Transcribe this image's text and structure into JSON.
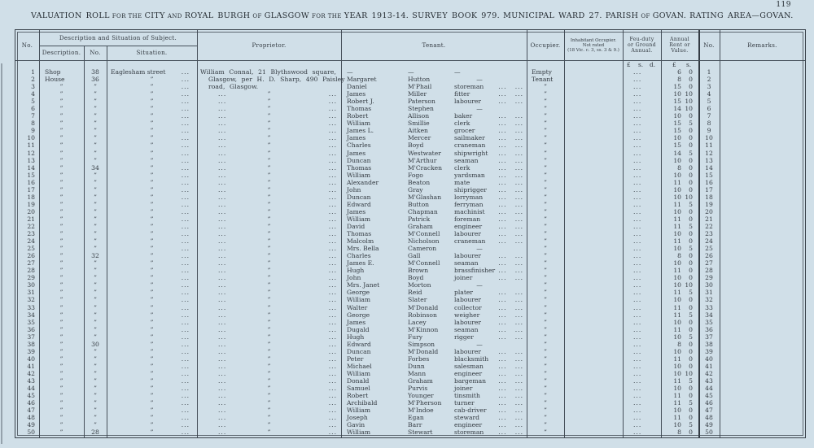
{
  "title": {
    "segments": [
      {
        "text": "VALUATION ROLL",
        "small": false
      },
      {
        "text": "FOR THE",
        "small": true
      },
      {
        "text": "CITY",
        "small": false
      },
      {
        "text": "AND",
        "small": true
      },
      {
        "text": "ROYAL BURGH",
        "small": false
      },
      {
        "text": "OF",
        "small": true
      },
      {
        "text": "GLASGOW",
        "small": false
      },
      {
        "text": "FOR THE",
        "small": true
      },
      {
        "text": "YEAR 1913-14.",
        "small": false
      },
      {
        "text": "SURVEY BOOK 979.",
        "small": false,
        "gap": true
      },
      {
        "text": "MUNICIPAL WARD 27.",
        "small": false,
        "gap": true
      },
      {
        "text": "PARISH",
        "small": false,
        "gap": true
      },
      {
        "text": "OF",
        "small": true
      },
      {
        "text": "GOVAN.",
        "small": false
      },
      {
        "text": "RATING AREA—GOVAN.",
        "small": false,
        "gap": true
      }
    ],
    "page_number": "119"
  },
  "table": {
    "headers": {
      "no_left": "No.",
      "group": "Description and Situation of Subject.",
      "description": "Description.",
      "no_mid": "No.",
      "situation": "Situation.",
      "proprietor": "Proprietor.",
      "tenant": "Tenant.",
      "occupier": "Occupier.",
      "inhabitant_lines": [
        "Inhabitant Occupier.",
        "Not rated",
        "(18 Vic. c. 3, ss. 3 & 9.)"
      ],
      "feu_lines": [
        "Feu-duty",
        "or Ground",
        "Annual."
      ],
      "rent_lines": [
        "Annual",
        "Rent or",
        "Value."
      ],
      "no_right": "No.",
      "remarks": "Remarks."
    },
    "units": {
      "pound": "£",
      "s": "s.",
      "d": "d."
    },
    "ditto": "”",
    "dash": "—",
    "dots": "...",
    "proprietor_lines": [
      "William Connal, 21 Blythswood square,",
      "Glasgow, per H. D. Sharp, 490 Paisley",
      "road, Glasgow."
    ],
    "columns_legend": [
      "no",
      "description",
      "house_no",
      "situation",
      "tenant_forename",
      "tenant_surname",
      "tenant_occupation",
      "occupier",
      "rent_pounds",
      "rent_shillings"
    ],
    "rows": [
      [
        1,
        "Shop",
        "38",
        "Eaglesham street",
        "—",
        "—",
        "—",
        "Empty",
        "6",
        "0"
      ],
      [
        2,
        "House",
        "36",
        "”",
        "Margaret",
        "Hutton",
        "—",
        "Tenant",
        "8",
        "0"
      ],
      [
        3,
        "”",
        "”",
        "”",
        "Daniel",
        "M'Phail",
        "storeman",
        "”",
        "15",
        "0"
      ],
      [
        4,
        "”",
        "”",
        "”",
        "James",
        "Miller",
        "fitter",
        "”",
        "10",
        "10"
      ],
      [
        5,
        "”",
        "”",
        "”",
        "Robert J.",
        "Paterson",
        "labourer",
        "”",
        "15",
        "10"
      ],
      [
        6,
        "”",
        "”",
        "”",
        "Thomas",
        "Stephen",
        "—",
        "”",
        "14",
        "10"
      ],
      [
        7,
        "”",
        "”",
        "”",
        "Robert",
        "Allison",
        "baker",
        "”",
        "10",
        "0"
      ],
      [
        8,
        "”",
        "”",
        "”",
        "William",
        "Smillie",
        "clerk",
        "”",
        "15",
        "5"
      ],
      [
        9,
        "”",
        "”",
        "”",
        "James L.",
        "Aitken",
        "grocer",
        "”",
        "15",
        "0"
      ],
      [
        10,
        "”",
        "”",
        "”",
        "James",
        "Mercer",
        "sailmaker",
        "”",
        "10",
        "0"
      ],
      [
        11,
        "”",
        "”",
        "”",
        "Charles",
        "Boyd",
        "craneman",
        "”",
        "15",
        "0"
      ],
      [
        12,
        "”",
        "”",
        "”",
        "James",
        "Westwater",
        "shipwright",
        "”",
        "14",
        "5"
      ],
      [
        13,
        "”",
        "”",
        "”",
        "Duncan",
        "M'Arthur",
        "seaman",
        "”",
        "10",
        "0"
      ],
      [
        14,
        "”",
        "34",
        "”",
        "Thomas",
        "M'Cracken",
        "clerk",
        "”",
        "8",
        "0"
      ],
      [
        15,
        "”",
        "”",
        "”",
        "William",
        "Fogo",
        "yardsman",
        "”",
        "10",
        "0"
      ],
      [
        16,
        "”",
        "”",
        "”",
        "Alexander",
        "Beaton",
        "mate",
        "”",
        "11",
        "0"
      ],
      [
        17,
        "”",
        "”",
        "”",
        "John",
        "Gray",
        "shiprigger",
        "”",
        "10",
        "0"
      ],
      [
        18,
        "”",
        "”",
        "”",
        "Duncan",
        "M'Glashan",
        "lorryman",
        "”",
        "10",
        "10"
      ],
      [
        19,
        "”",
        "”",
        "”",
        "Edward",
        "Button",
        "ferryman",
        "”",
        "11",
        "5"
      ],
      [
        20,
        "”",
        "”",
        "”",
        "James",
        "Chapman",
        "machinist",
        "”",
        "10",
        "0"
      ],
      [
        21,
        "”",
        "”",
        "”",
        "William",
        "Patrick",
        "foreman",
        "”",
        "11",
        "0"
      ],
      [
        22,
        "”",
        "”",
        "”",
        "David",
        "Graham",
        "engineer",
        "”",
        "11",
        "5"
      ],
      [
        23,
        "”",
        "”",
        "”",
        "Thomas",
        "M'Connell",
        "labourer",
        "”",
        "10",
        "0"
      ],
      [
        24,
        "”",
        "”",
        "”",
        "Malcolm",
        "Nicholson",
        "craneman",
        "”",
        "11",
        "0"
      ],
      [
        25,
        "”",
        "”",
        "”",
        "Mrs. Bella",
        "Cameron",
        "—",
        "”",
        "10",
        "5"
      ],
      [
        26,
        "”",
        "32",
        "”",
        "Charles",
        "Gall",
        "labourer",
        "”",
        "8",
        "0"
      ],
      [
        27,
        "”",
        "”",
        "”",
        "James E.",
        "M'Connell",
        "seaman",
        "”",
        "10",
        "0"
      ],
      [
        28,
        "”",
        "”",
        "”",
        "Hugh",
        "Brown",
        "brassfinisher",
        "”",
        "11",
        "0"
      ],
      [
        29,
        "”",
        "”",
        "”",
        "John",
        "Boyd",
        "joiner",
        "”",
        "10",
        "0"
      ],
      [
        30,
        "”",
        "”",
        "”",
        "Mrs. Janet",
        "Morton",
        "—",
        "”",
        "10",
        "10"
      ],
      [
        31,
        "”",
        "”",
        "”",
        "George",
        "Reid",
        "plater",
        "”",
        "11",
        "5"
      ],
      [
        32,
        "”",
        "”",
        "”",
        "William",
        "Slater",
        "labourer",
        "”",
        "10",
        "0"
      ],
      [
        33,
        "”",
        "”",
        "”",
        "Walter",
        "M'Donald",
        "collector",
        "”",
        "11",
        "0"
      ],
      [
        34,
        "”",
        "”",
        "”",
        "George",
        "Robinson",
        "weigher",
        "”",
        "11",
        "5"
      ],
      [
        35,
        "”",
        "”",
        "”",
        "James",
        "Lacey",
        "labourer",
        "”",
        "10",
        "0"
      ],
      [
        36,
        "”",
        "”",
        "”",
        "Dugald",
        "M'Kinnon",
        "seaman",
        "”",
        "11",
        "0"
      ],
      [
        37,
        "”",
        "”",
        "”",
        "Hugh",
        "Fury",
        "rigger",
        "”",
        "10",
        "5"
      ],
      [
        38,
        "”",
        "30",
        "”",
        "Edward",
        "Simpson",
        "—",
        "”",
        "8",
        "0"
      ],
      [
        39,
        "”",
        "”",
        "”",
        "Duncan",
        "M'Donald",
        "labourer",
        "”",
        "10",
        "0"
      ],
      [
        40,
        "”",
        "”",
        "”",
        "Peter",
        "Forbes",
        "blacksmith",
        "”",
        "11",
        "0"
      ],
      [
        41,
        "”",
        "”",
        "”",
        "Michael",
        "Dunn",
        "salesman",
        "”",
        "10",
        "0"
      ],
      [
        42,
        "”",
        "”",
        "”",
        "William",
        "Mann",
        "engineer",
        "”",
        "10",
        "10"
      ],
      [
        43,
        "”",
        "”",
        "”",
        "Donald",
        "Graham",
        "bargeman",
        "”",
        "11",
        "5"
      ],
      [
        44,
        "”",
        "”",
        "”",
        "Samuel",
        "Purvis",
        "joiner",
        "”",
        "10",
        "0"
      ],
      [
        45,
        "”",
        "”",
        "”",
        "Robert",
        "Younger",
        "tinsmith",
        "”",
        "11",
        "0"
      ],
      [
        46,
        "”",
        "”",
        "”",
        "Archibald",
        "M'Pherson",
        "turner",
        "”",
        "11",
        "5"
      ],
      [
        47,
        "”",
        "”",
        "”",
        "William",
        "M'Indoe",
        "cab-driver",
        "”",
        "10",
        "0"
      ],
      [
        48,
        "”",
        "”",
        "”",
        "Joseph",
        "Egan",
        "steward",
        "”",
        "11",
        "0"
      ],
      [
        49,
        "”",
        "”",
        "”",
        "Gavin",
        "Barr",
        "engineer",
        "”",
        "10",
        "5"
      ],
      [
        50,
        "”",
        "28",
        "”",
        "William",
        "Stewart",
        "storeman",
        "”",
        "8",
        "0"
      ]
    ]
  }
}
